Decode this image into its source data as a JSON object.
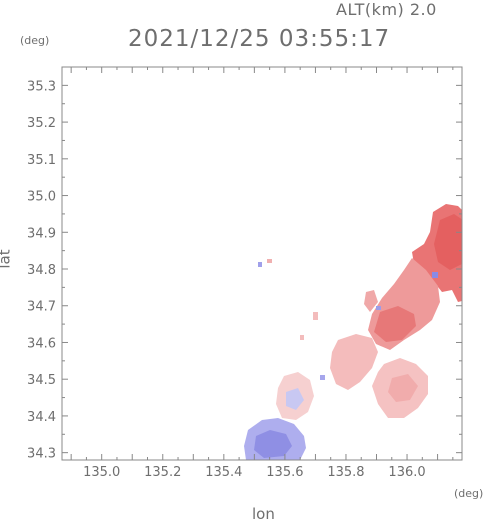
{
  "header": {
    "altitude": "ALT(km) 2.0",
    "timestamp": "2021/12/25 03:55:17"
  },
  "axes": {
    "x_unit": "(deg)",
    "y_unit": "(deg)",
    "xlabel": "lon",
    "ylabel": "lat",
    "x_ticks": [
      "135.0",
      "135.2",
      "135.4",
      "135.6",
      "135.8",
      "136.0"
    ],
    "y_ticks": [
      "35.3",
      "35.2",
      "35.1",
      "35.0",
      "34.9",
      "34.8",
      "34.7",
      "34.6",
      "34.5",
      "34.4",
      "34.3"
    ]
  },
  "map": {
    "lon_range": [
      134.87,
      136.18
    ],
    "lat_range": [
      34.28,
      35.35
    ],
    "colors": {
      "approaching": "#8a8ae6",
      "receding_weak": "#f3b4b4",
      "receding_mid": "#ec9090",
      "receding_strong": "#e86a6a"
    }
  }
}
